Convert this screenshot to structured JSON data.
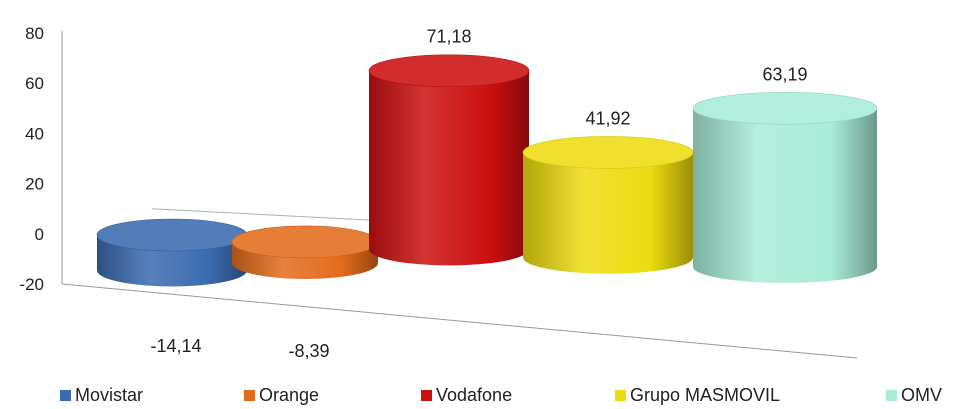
{
  "chart_data": {
    "type": "bar",
    "style": "3d-cylinder",
    "categories": [
      "Movistar",
      "Orange",
      "Vodafone",
      "Grupo MASMOVIL",
      "OMV"
    ],
    "values": [
      -14.14,
      -8.39,
      71.18,
      41.92,
      63.19
    ],
    "value_labels": [
      "-14,14",
      "-8,39",
      "71,18",
      "41,92",
      "63,19"
    ],
    "colors": [
      "#3a6bb0",
      "#e36c1c",
      "#cc1010",
      "#ecdc10",
      "#a8ecd8"
    ],
    "yticks": [
      "80",
      "60",
      "40",
      "20",
      "0",
      "-20"
    ],
    "ylim": [
      -20,
      80
    ],
    "legend_position": "bottom",
    "grid": false,
    "title": "",
    "xlabel": "",
    "ylabel": ""
  }
}
